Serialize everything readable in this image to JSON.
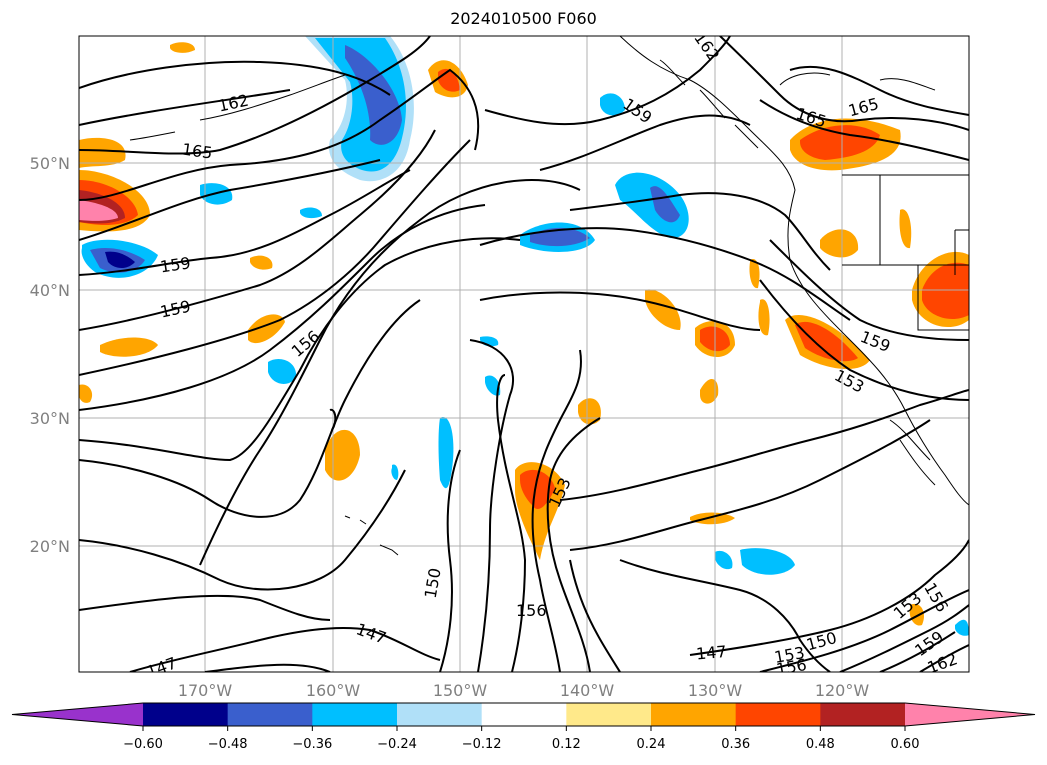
{
  "title": "2024010500 F060",
  "map": {
    "lat_labels": [
      "50°N",
      "40°N",
      "30°N",
      "20°N"
    ],
    "lon_labels": [
      "170°W",
      "160°W",
      "150°W",
      "140°W",
      "130°W",
      "120°W"
    ],
    "contour_labels": [
      "162",
      "165",
      "159",
      "159",
      "156",
      "159",
      "162",
      "165",
      "165",
      "159",
      "153",
      "153",
      "150",
      "156",
      "147",
      "147",
      "150",
      "153",
      "156",
      "153",
      "156",
      "159",
      "162"
    ]
  },
  "colorbar": {
    "ticks": [
      "−0.60",
      "−0.48",
      "−0.36",
      "−0.24",
      "−0.12",
      "0.12",
      "0.24",
      "0.36",
      "0.48",
      "0.60"
    ],
    "colors": [
      "#9932cc",
      "#00008b",
      "#3a5fcd",
      "#00bfff",
      "#b0e0f8",
      "#ffffff",
      "#ffe98a",
      "#ffa500",
      "#ff4500",
      "#b22222",
      "#ff82ab"
    ]
  }
}
